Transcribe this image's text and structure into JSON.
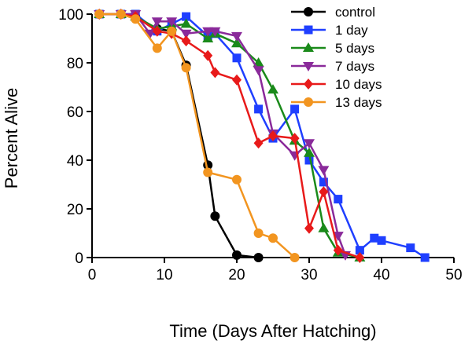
{
  "chart_data": {
    "type": "line",
    "title": "",
    "xlabel": "Time (Days After Hatching)",
    "ylabel": "Percent Alive",
    "xlim": [
      0,
      50
    ],
    "ylim": [
      0,
      100
    ],
    "xticks": [
      0,
      10,
      20,
      30,
      40,
      50
    ],
    "yticks": [
      0,
      20,
      40,
      60,
      80,
      100
    ],
    "grid": false,
    "legend_position": "top-right",
    "series": [
      {
        "name": "control",
        "color": "#000000",
        "marker": "circle",
        "x": [
          1,
          4,
          6,
          9,
          11,
          13,
          16,
          17,
          20,
          23
        ],
        "y": [
          100,
          100,
          99,
          94,
          93,
          79,
          38,
          17,
          1,
          0
        ]
      },
      {
        "name": "1 day",
        "color": "#1f3fff",
        "marker": "square",
        "x": [
          1,
          4,
          6,
          9,
          11,
          13,
          16,
          17,
          20,
          23,
          25,
          28,
          30,
          32,
          34,
          37,
          39,
          40,
          44,
          46
        ],
        "y": [
          100,
          100,
          100,
          93,
          96,
          99,
          91,
          92,
          82,
          61,
          49,
          61,
          40,
          31,
          24,
          3,
          8,
          7,
          4,
          0
        ]
      },
      {
        "name": "5 days",
        "color": "#1a8a1a",
        "marker": "triangle-up",
        "x": [
          1,
          4,
          6,
          9,
          11,
          13,
          16,
          17,
          20,
          23,
          25,
          28,
          30,
          32,
          34,
          37
        ],
        "y": [
          100,
          100,
          99,
          94,
          95,
          96,
          90,
          92,
          88,
          80,
          69,
          48,
          43,
          12,
          2,
          0
        ]
      },
      {
        "name": "7 days",
        "color": "#8a2a9a",
        "marker": "triangle-down",
        "x": [
          1,
          4,
          6,
          8,
          9,
          11,
          13,
          16,
          17,
          20,
          23,
          25,
          28,
          30,
          32,
          34,
          35
        ],
        "y": [
          100,
          100,
          100,
          92,
          97,
          97,
          92,
          93,
          93,
          91,
          77,
          51,
          42,
          47,
          36,
          9,
          1
        ]
      },
      {
        "name": "10 days",
        "color": "#e81a1a",
        "marker": "diamond",
        "x": [
          1,
          4,
          6,
          9,
          11,
          13,
          16,
          17,
          20,
          23,
          25,
          28,
          30,
          32,
          34,
          37
        ],
        "y": [
          100,
          100,
          99,
          93,
          92,
          89,
          83,
          76,
          73,
          47,
          50,
          49,
          12,
          27,
          3,
          0
        ]
      },
      {
        "name": "13 days",
        "color": "#f29520",
        "marker": "circle",
        "x": [
          1,
          4,
          6,
          9,
          11,
          13,
          16,
          20,
          23,
          25,
          28
        ],
        "y": [
          100,
          100,
          98,
          86,
          93,
          78,
          35,
          32,
          10,
          8,
          0
        ]
      }
    ]
  }
}
